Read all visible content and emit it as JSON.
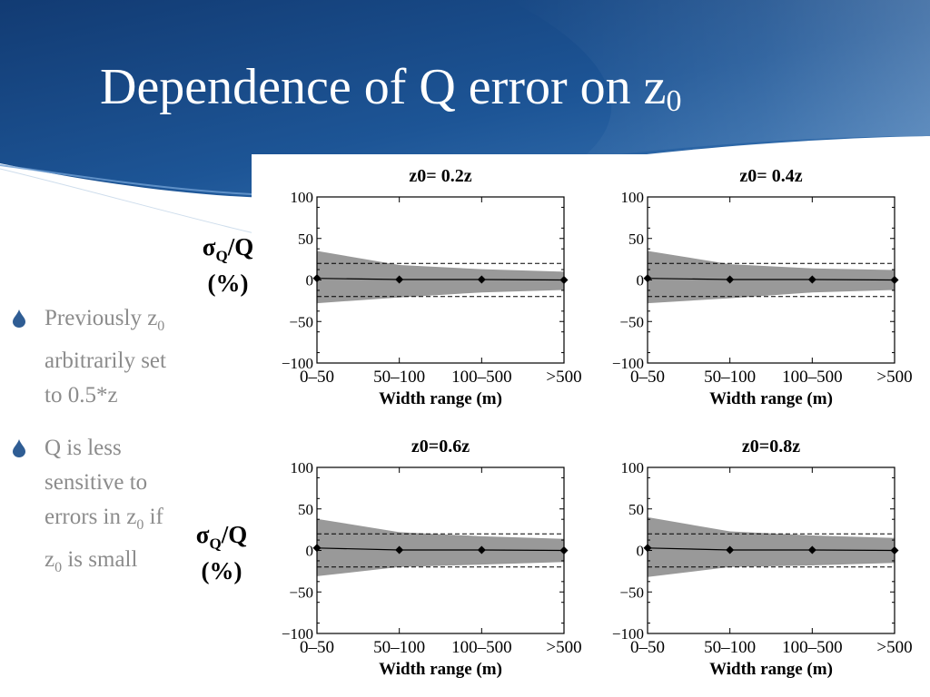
{
  "slide": {
    "title": "Dependence of Q error on z",
    "title_sub": "0",
    "theme_colors": {
      "dark": "#123b73",
      "mid": "#1d5596",
      "light": "#3d79b8"
    }
  },
  "ylabel": {
    "prefix": "σ",
    "sub": "Q",
    "suffix": "/Q",
    "unit": "(%)"
  },
  "bullets": [
    {
      "icon": "water-drop-icon",
      "color": "#2f5d94",
      "segments": [
        {
          "t": "Previously z"
        },
        {
          "t": "0",
          "sub": true
        },
        {
          "t": "\narbitrarily set\nto 0.5*z"
        }
      ]
    },
    {
      "icon": "water-drop-icon",
      "color": "#2f5d94",
      "segments": [
        {
          "t": "Q is less\nsensitive to\nerrors in z"
        },
        {
          "t": "0",
          "sub": true
        },
        {
          "t": " if\nz"
        },
        {
          "t": "0",
          "sub": true
        },
        {
          "t": " is small"
        }
      ]
    }
  ],
  "chart_data": [
    {
      "type": "line",
      "title": "z0= 0.2z",
      "xlabel": "Width range (m)",
      "categories": [
        "0–50",
        "50–100",
        "100–500",
        ">500"
      ],
      "ylim": [
        -100,
        100
      ],
      "yticks": [
        100,
        50,
        0,
        -50,
        -100
      ],
      "ytick_labels": [
        "100",
        "50",
        "0",
        "−50",
        "−100"
      ],
      "reference_lines": [
        20,
        -20
      ],
      "band": {
        "upper": [
          35,
          18,
          13,
          10
        ],
        "lower": [
          -28,
          -21,
          -15,
          -12
        ]
      },
      "series": [
        {
          "values": [
            2,
            0.5,
            0.5,
            0
          ]
        }
      ]
    },
    {
      "type": "line",
      "title": "z0= 0.4z",
      "xlabel": "Width range (m)",
      "categories": [
        "0–50",
        "50–100",
        "100–500",
        ">500"
      ],
      "ylim": [
        -100,
        100
      ],
      "yticks": [
        100,
        50,
        0,
        -50,
        -100
      ],
      "ytick_labels": [
        "100",
        "50",
        "0",
        "−50",
        "−100"
      ],
      "reference_lines": [
        20,
        -20
      ],
      "band": {
        "upper": [
          35,
          19,
          14,
          12
        ],
        "lower": [
          -28,
          -22,
          -15,
          -12
        ]
      },
      "series": [
        {
          "values": [
            2,
            0.5,
            0.5,
            0
          ]
        }
      ]
    },
    {
      "type": "line",
      "title": "z0=0.6z",
      "xlabel": "Width range (m)",
      "categories": [
        "0–50",
        "50–100",
        "100–500",
        ">500"
      ],
      "ylim": [
        -100,
        100
      ],
      "yticks": [
        100,
        50,
        0,
        -50,
        -100
      ],
      "ytick_labels": [
        "100",
        "50",
        "0",
        "−50",
        "−100"
      ],
      "reference_lines": [
        20,
        -20
      ],
      "band": {
        "upper": [
          38,
          22,
          17,
          14
        ],
        "lower": [
          -31,
          -20,
          -17,
          -14
        ]
      },
      "series": [
        {
          "values": [
            3,
            0.5,
            0.5,
            0
          ]
        }
      ]
    },
    {
      "type": "line",
      "title": "z0=0.8z",
      "xlabel": "Width range (m)",
      "categories": [
        "0–50",
        "50–100",
        "100–500",
        ">500"
      ],
      "ylim": [
        -100,
        100
      ],
      "yticks": [
        100,
        50,
        0,
        -50,
        -100
      ],
      "ytick_labels": [
        "100",
        "50",
        "0",
        "−50",
        "−100"
      ],
      "reference_lines": [
        20,
        -20
      ],
      "band": {
        "upper": [
          40,
          23,
          18,
          15
        ],
        "lower": [
          -32,
          -20,
          -18,
          -15
        ]
      },
      "series": [
        {
          "values": [
            3,
            0.5,
            0.5,
            0
          ]
        }
      ]
    }
  ]
}
